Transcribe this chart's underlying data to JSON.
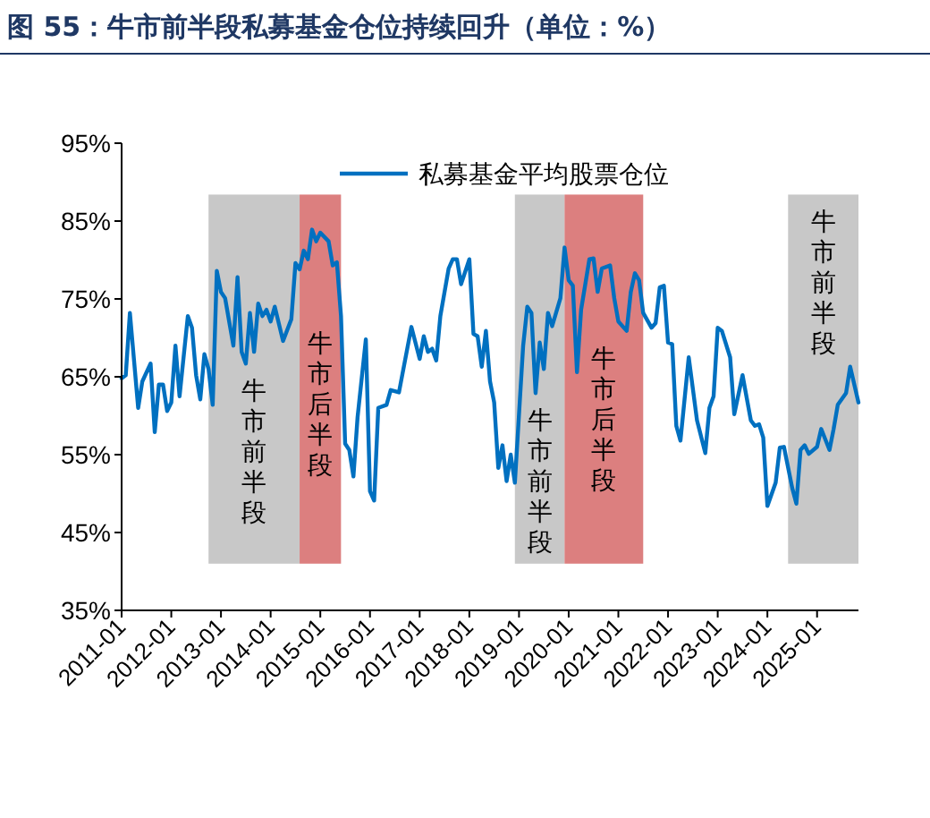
{
  "chart_data": {
    "type": "line",
    "title": "图 55：牛市前半段私募基金仓位持续回升（单位：%）",
    "x": [
      "2011-01",
      "2011-02",
      "2011-03",
      "2011-05",
      "2011-06",
      "2011-08",
      "2011-09",
      "2011-10",
      "2011-11",
      "2011-12",
      "2012-01",
      "2012-02",
      "2012-03",
      "2012-05",
      "2012-06",
      "2012-07",
      "2012-08",
      "2012-09",
      "2012-10",
      "2012-11",
      "2012-12",
      "2013-01",
      "2013-02",
      "2013-04",
      "2013-05",
      "2013-06",
      "2013-07",
      "2013-08",
      "2013-09",
      "2013-10",
      "2013-11",
      "2013-12",
      "2014-01",
      "2014-02",
      "2014-04",
      "2014-06",
      "2014-07",
      "2014-08",
      "2014-09",
      "2014-10",
      "2014-11",
      "2014-12",
      "2015-01",
      "2015-03",
      "2015-04",
      "2015-05",
      "2015-06",
      "2015-07",
      "2015-08",
      "2015-09",
      "2015-10",
      "2015-12",
      "2016-01",
      "2016-02",
      "2016-03",
      "2016-05",
      "2016-06",
      "2016-08",
      "2016-11",
      "2017-01",
      "2017-02",
      "2017-03",
      "2017-04",
      "2017-05",
      "2017-06",
      "2017-08",
      "2017-09",
      "2017-10",
      "2017-11",
      "2018-01",
      "2018-02",
      "2018-03",
      "2018-04",
      "2018-05",
      "2018-06",
      "2018-07",
      "2018-08",
      "2018-09",
      "2018-10",
      "2018-11",
      "2018-12",
      "2019-02",
      "2019-03",
      "2019-04",
      "2019-05",
      "2019-06",
      "2019-07",
      "2019-08",
      "2019-09",
      "2019-11",
      "2019-12",
      "2020-01",
      "2020-02",
      "2020-03",
      "2020-04",
      "2020-06",
      "2020-07",
      "2020-08",
      "2020-09",
      "2020-11",
      "2020-12",
      "2021-01",
      "2021-03",
      "2021-04",
      "2021-05",
      "2021-06",
      "2021-07",
      "2021-09",
      "2021-10",
      "2021-11",
      "2021-12",
      "2022-01",
      "2022-02",
      "2022-03",
      "2022-04",
      "2022-06",
      "2022-08",
      "2022-10",
      "2022-11",
      "2022-12",
      "2023-01",
      "2023-02",
      "2023-04",
      "2023-05",
      "2023-07",
      "2023-09",
      "2023-10",
      "2023-11",
      "2023-12",
      "2024-01",
      "2024-03",
      "2024-04",
      "2024-05",
      "2024-07",
      "2024-08",
      "2024-09",
      "2024-10",
      "2024-11",
      "2025-01",
      "2025-02",
      "2025-04",
      "2025-05",
      "2025-06",
      "2025-08",
      "2025-09",
      "2025-11"
    ],
    "series": [
      {
        "name": "私募基金平均股票仓位",
        "color": "#0070c0",
        "values": [
          64.8,
          65.2,
          73.2,
          61.0,
          64.4,
          66.7,
          57.9,
          64.0,
          64.0,
          60.6,
          61.7,
          69.0,
          62.5,
          72.8,
          71.3,
          65.2,
          62.1,
          67.9,
          66.0,
          61.4,
          78.6,
          75.9,
          75.1,
          69.0,
          77.8,
          68.2,
          66.7,
          73.2,
          68.2,
          74.4,
          72.8,
          73.6,
          72.1,
          74.0,
          69.6,
          72.4,
          79.6,
          78.8,
          81.2,
          80.1,
          83.9,
          82.4,
          83.5,
          82.4,
          79.3,
          79.7,
          72.8,
          56.4,
          55.6,
          52.2,
          59.8,
          69.8,
          50.3,
          49.1,
          61.0,
          61.4,
          63.3,
          63.0,
          71.4,
          67.3,
          70.2,
          68.2,
          68.6,
          67.1,
          72.8,
          78.9,
          80.1,
          80.1,
          76.9,
          80.1,
          70.5,
          70.2,
          66.3,
          70.9,
          64.4,
          61.7,
          53.3,
          56.2,
          51.6,
          55.0,
          51.4,
          69.0,
          74.0,
          73.2,
          62.9,
          69.4,
          66.0,
          73.2,
          71.5,
          75.1,
          81.6,
          77.4,
          76.7,
          65.6,
          73.6,
          80.1,
          80.2,
          75.9,
          78.9,
          79.3,
          75.1,
          72.1,
          70.9,
          75.9,
          78.3,
          77.4,
          73.2,
          71.3,
          71.9,
          76.5,
          76.7,
          69.4,
          69.2,
          58.7,
          56.8,
          67.5,
          59.4,
          55.2,
          61.0,
          62.5,
          71.3,
          70.9,
          67.5,
          60.2,
          65.2,
          59.4,
          58.7,
          58.9,
          57.2,
          48.4,
          51.4,
          55.9,
          56.0,
          50.7,
          48.7,
          55.6,
          56.2,
          55.1,
          56.0,
          58.3,
          55.6,
          58.3,
          61.4,
          62.9,
          66.3,
          61.7
        ]
      }
    ],
    "xlim": [
      "2011-01",
      "2025-11"
    ],
    "xticks": [
      "2011-01",
      "2012-01",
      "2013-01",
      "2014-01",
      "2015-01",
      "2016-01",
      "2017-01",
      "2018-01",
      "2019-01",
      "2020-01",
      "2021-01",
      "2022-01",
      "2023-01",
      "2024-01",
      "2025-01"
    ],
    "ylim": [
      35,
      95
    ],
    "yticks": [
      {
        "value": 35,
        "label": "35%"
      },
      {
        "value": 45,
        "label": "45%"
      },
      {
        "value": 55,
        "label": "55%"
      },
      {
        "value": 65,
        "label": "65%"
      },
      {
        "value": 75,
        "label": "75%"
      },
      {
        "value": 85,
        "label": "85%"
      },
      {
        "value": 95,
        "label": "95%"
      }
    ],
    "bands": [
      {
        "axis": "x",
        "from": "2012-10",
        "to": "2014-08",
        "label": "牛市前半段",
        "color": "#c8c8c8"
      },
      {
        "axis": "x",
        "from": "2014-08",
        "to": "2015-06",
        "label": "牛市后半段",
        "color": "#dc7f7f"
      },
      {
        "axis": "x",
        "from": "2018-12",
        "to": "2019-12",
        "label": "牛市前半段",
        "color": "#c8c8c8"
      },
      {
        "axis": "x",
        "from": "2019-12",
        "to": "2021-07",
        "label": "牛市后半段",
        "color": "#dc7f7f"
      },
      {
        "axis": "x",
        "from": "2024-06",
        "to": "2025-11",
        "label": "牛市前半段",
        "color": "#c8c8c8"
      }
    ],
    "legend": "top right",
    "grid": false
  }
}
